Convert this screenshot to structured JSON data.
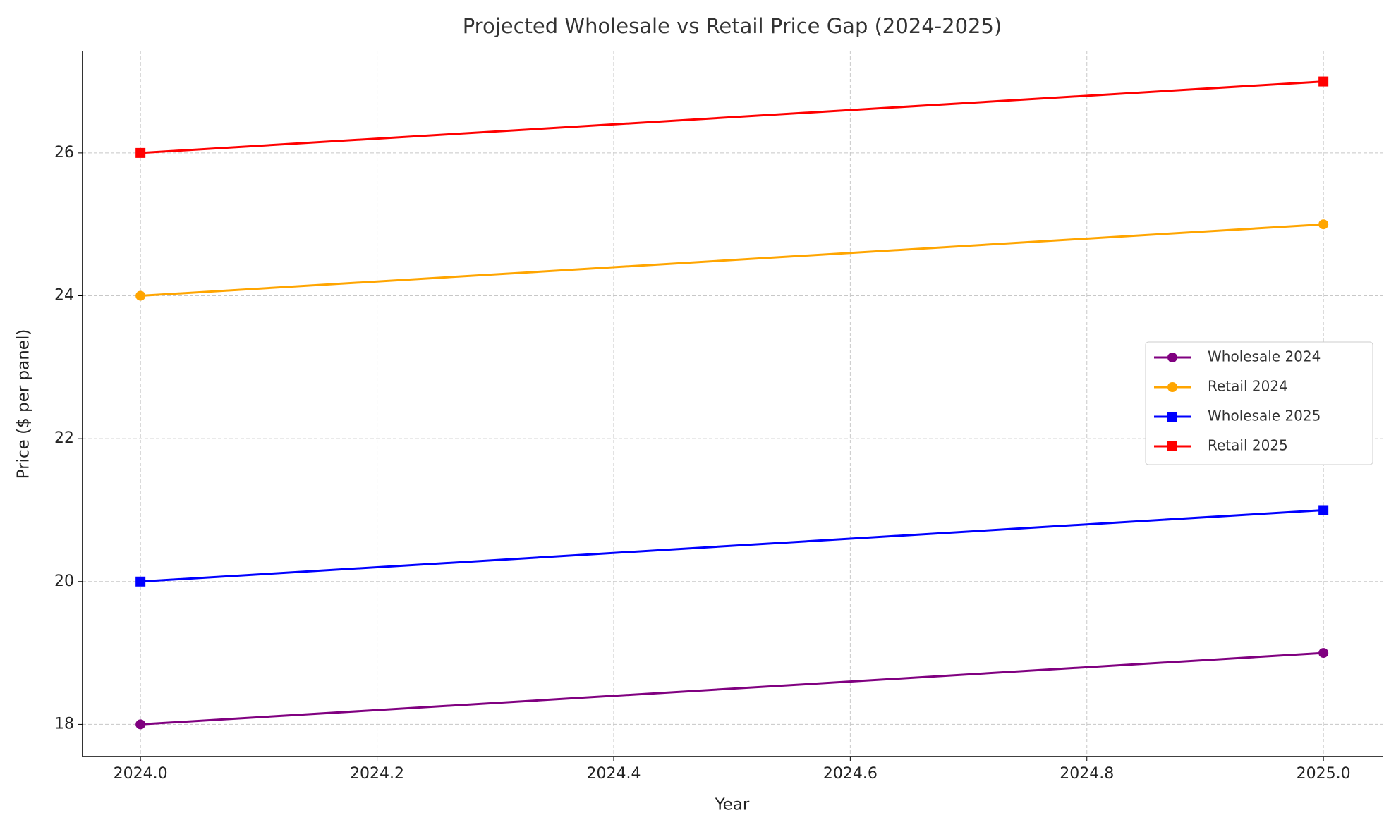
{
  "chart_data": {
    "type": "line",
    "title": "Projected Wholesale vs Retail Price Gap (2024-2025)",
    "x_label": "Year",
    "y_label": "Price ($ per panel)",
    "x": [
      2024,
      2025
    ],
    "series": [
      {
        "name": "Wholesale 2024",
        "color": "#800080",
        "marker": "circle",
        "values": [
          18,
          19
        ]
      },
      {
        "name": "Retail 2024",
        "color": "#ffa500",
        "marker": "circle",
        "values": [
          24,
          25
        ]
      },
      {
        "name": "Wholesale 2025",
        "color": "#0000ff",
        "marker": "square",
        "values": [
          20,
          21
        ]
      },
      {
        "name": "Retail 2025",
        "color": "#ff0000",
        "marker": "square",
        "values": [
          26,
          27
        ]
      }
    ],
    "xlim": [
      2023.951,
      2025.05
    ],
    "xticks": [
      {
        "value": 2024,
        "label": "2024.0"
      },
      2024.2,
      2024.4,
      2024.6,
      2024.8,
      {
        "value": 2025,
        "label": "2025.0"
      }
    ],
    "ylim": [
      17.55,
      27.43
    ],
    "yticks": [
      18,
      20,
      22,
      24,
      26
    ],
    "grid": true,
    "legend": "right"
  }
}
